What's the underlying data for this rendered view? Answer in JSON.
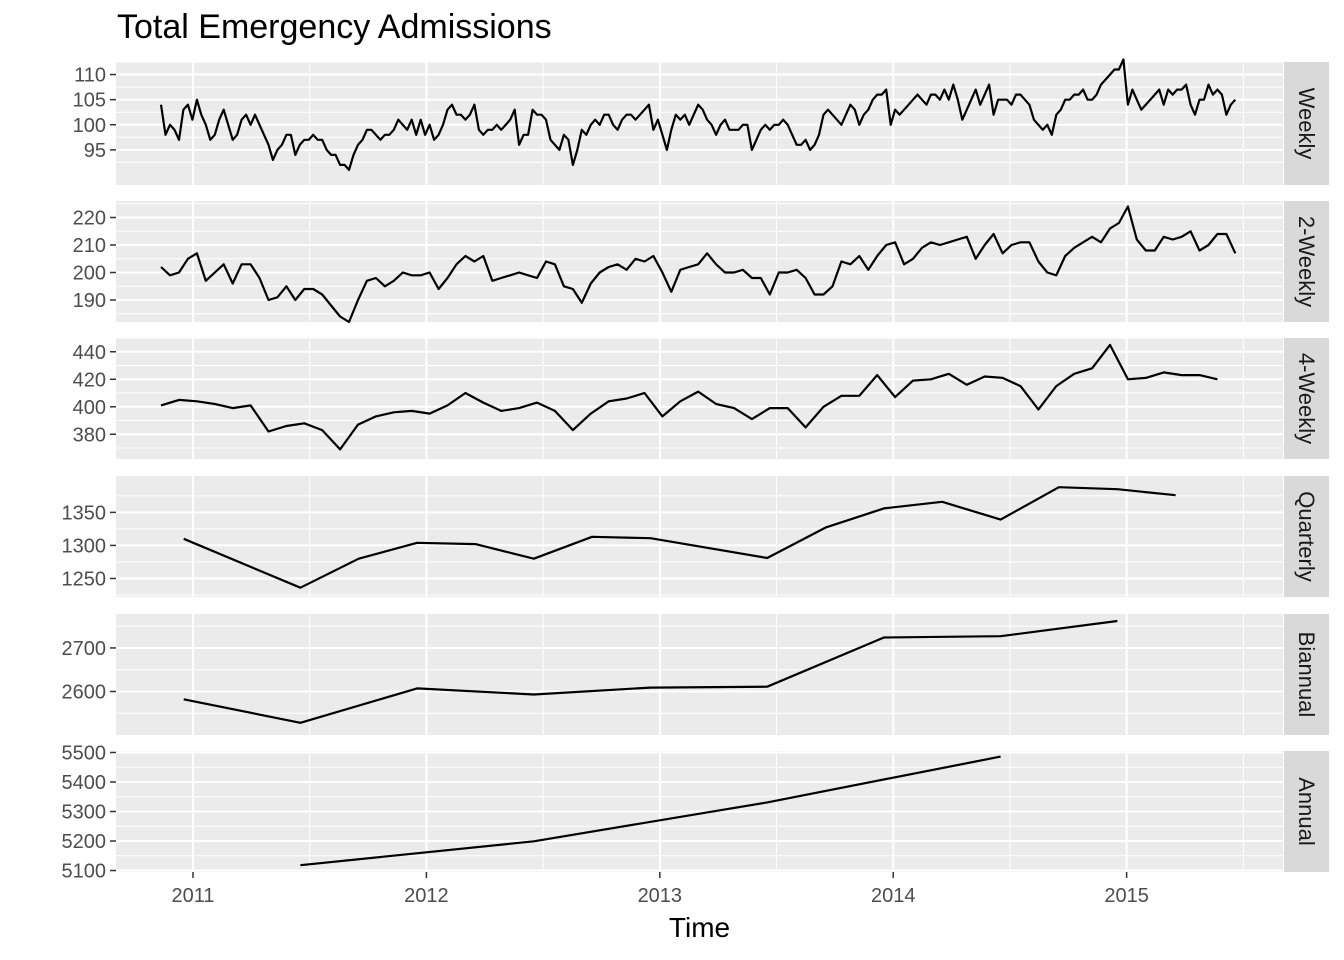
{
  "chart_data": {
    "type": "line",
    "title": "Total Emergency Admissions",
    "xlabel": "Time",
    "xlim": [
      2010.67,
      2015.67
    ],
    "x_ticks": [
      2011,
      2012,
      2013,
      2014,
      2015
    ],
    "grid": true,
    "facet_layout": "stacked rows, strip labels on right",
    "line_color": "#000000",
    "panel_background": "#ebebeb",
    "strip_background": "#d9d9d9",
    "gridline_color": "#ffffff",
    "series": [
      {
        "name": "Weekly",
        "ylim": [
          88,
          112.5
        ],
        "y_ticks": [
          95,
          100,
          105,
          110
        ],
        "x_start": 2010.863,
        "x_step": 0.019178,
        "values": [
          104,
          98,
          100,
          99,
          97,
          103,
          104,
          101,
          105,
          102,
          100,
          97,
          98,
          101,
          103,
          100,
          97,
          98,
          101,
          102,
          100,
          102,
          100,
          98,
          96,
          93,
          95,
          96,
          98,
          98,
          94,
          96,
          97,
          97,
          98,
          97,
          97,
          95,
          94,
          94,
          92,
          92,
          91,
          94,
          96,
          97,
          99,
          99,
          98,
          97,
          98,
          98,
          99,
          101,
          100,
          99,
          101,
          98,
          101,
          98,
          100,
          97,
          98,
          100,
          103,
          104,
          102,
          102,
          101,
          102,
          104,
          99,
          98,
          99,
          99,
          100,
          99,
          100,
          101,
          103,
          96,
          98,
          98,
          103,
          102,
          102,
          101,
          97,
          96,
          95,
          98,
          97,
          92,
          95,
          99,
          98,
          100,
          101,
          100,
          102,
          102,
          100,
          99,
          101,
          102,
          102,
          101,
          102,
          103,
          104,
          99,
          101,
          98,
          95,
          99,
          102,
          101,
          102,
          100,
          102,
          104,
          103,
          101,
          100,
          98,
          100,
          101,
          99,
          99,
          99,
          100,
          100,
          95,
          97,
          99,
          100,
          99,
          100,
          100,
          101,
          100,
          98,
          96,
          96,
          97,
          95,
          96,
          98,
          102,
          103,
          102,
          101,
          100,
          102,
          104,
          103,
          100,
          102,
          103,
          105,
          106,
          106,
          107,
          100,
          103,
          102,
          103,
          104,
          105,
          106,
          105,
          104,
          106,
          106,
          105,
          107,
          105,
          108,
          105,
          101,
          103,
          105,
          107,
          104,
          106,
          108,
          102,
          105,
          105,
          105,
          104,
          106,
          106,
          105,
          104,
          101,
          100,
          99,
          100,
          98,
          102,
          103,
          105,
          105,
          106,
          106,
          107,
          105,
          105,
          106,
          108,
          109,
          110,
          111,
          111,
          113,
          104,
          107,
          105,
          103,
          104,
          105,
          106,
          107,
          104,
          107,
          106,
          107,
          107,
          108,
          104,
          102,
          105,
          105,
          108,
          106,
          107,
          106,
          102,
          104,
          105
        ]
      },
      {
        "name": "2-Weekly",
        "ylim": [
          182,
          226
        ],
        "y_ticks": [
          190,
          200,
          210,
          220
        ],
        "x_start": 2010.863,
        "x_step": 0.038356,
        "values": [
          202,
          199,
          200,
          205,
          207,
          197,
          200,
          203,
          196,
          203,
          203,
          198,
          190,
          191,
          195,
          190,
          194,
          194,
          192,
          188,
          184,
          182,
          190,
          197,
          198,
          195,
          197,
          200,
          199,
          199,
          200,
          194,
          198,
          203,
          206,
          204,
          206,
          197,
          198,
          199,
          200,
          199,
          198,
          204,
          203,
          195,
          194,
          189,
          196,
          200,
          202,
          203,
          201,
          205,
          204,
          206,
          200,
          193,
          201,
          202,
          203,
          207,
          203,
          200,
          200,
          201,
          198,
          198,
          192,
          200,
          200,
          201,
          198,
          192,
          192,
          195,
          204,
          203,
          206,
          201,
          206,
          210,
          211,
          203,
          205,
          209,
          211,
          210,
          211,
          212,
          213,
          205,
          210,
          214,
          207,
          210,
          211,
          211,
          204,
          200,
          199,
          206,
          209,
          211,
          213,
          211,
          216,
          218,
          224,
          212,
          208,
          208,
          213,
          212,
          213,
          215,
          208,
          210,
          214,
          214,
          207
        ]
      },
      {
        "name": "4-Weekly",
        "ylim": [
          362,
          450
        ],
        "y_ticks": [
          380,
          400,
          420,
          440
        ],
        "x_start": 2010.863,
        "x_step": 0.076712,
        "values": [
          401,
          405,
          404,
          402,
          399,
          401,
          382,
          386,
          388,
          383,
          369,
          387,
          393,
          396,
          397,
          395,
          401,
          410,
          403,
          397,
          399,
          403,
          397,
          383,
          395,
          404,
          406,
          410,
          393,
          404,
          411,
          402,
          399,
          391,
          399,
          399,
          385,
          400,
          408,
          408,
          423,
          407,
          419,
          420,
          424,
          416,
          422,
          421,
          415,
          398,
          415,
          424,
          428,
          445,
          420,
          421,
          425,
          423,
          423,
          420
        ]
      },
      {
        "name": "Quarterly",
        "ylim": [
          1222,
          1405
        ],
        "y_ticks": [
          1250,
          1300,
          1350
        ],
        "x": [
          2010.96,
          2011.46,
          2011.71,
          2011.96,
          2012.21,
          2012.46,
          2012.71,
          2012.96,
          2013.46,
          2013.71,
          2013.96,
          2014.21,
          2014.46,
          2014.71,
          2014.96,
          2015.21
        ],
        "values": [
          1310,
          1236,
          1280,
          1304,
          1302,
          1280,
          1313,
          1311,
          1281,
          1327,
          1356,
          1366,
          1339,
          1388,
          1385,
          1376
        ]
      },
      {
        "name": "Biannual",
        "ylim": [
          2500,
          2778
        ],
        "y_ticks": [
          2600,
          2700
        ],
        "x": [
          2010.96,
          2011.46,
          2011.96,
          2012.46,
          2012.96,
          2013.46,
          2013.96,
          2014.46,
          2014.96
        ],
        "values": [
          2582,
          2528,
          2607,
          2593,
          2609,
          2611,
          2724,
          2727,
          2762
        ]
      },
      {
        "name": "Annual",
        "ylim": [
          5095,
          5505
        ],
        "y_ticks": [
          5100,
          5200,
          5300,
          5400,
          5500
        ],
        "x": [
          2011.46,
          2012.46,
          2013.46,
          2014.46
        ],
        "values": [
          5118,
          5199,
          5331,
          5486
        ]
      }
    ]
  }
}
